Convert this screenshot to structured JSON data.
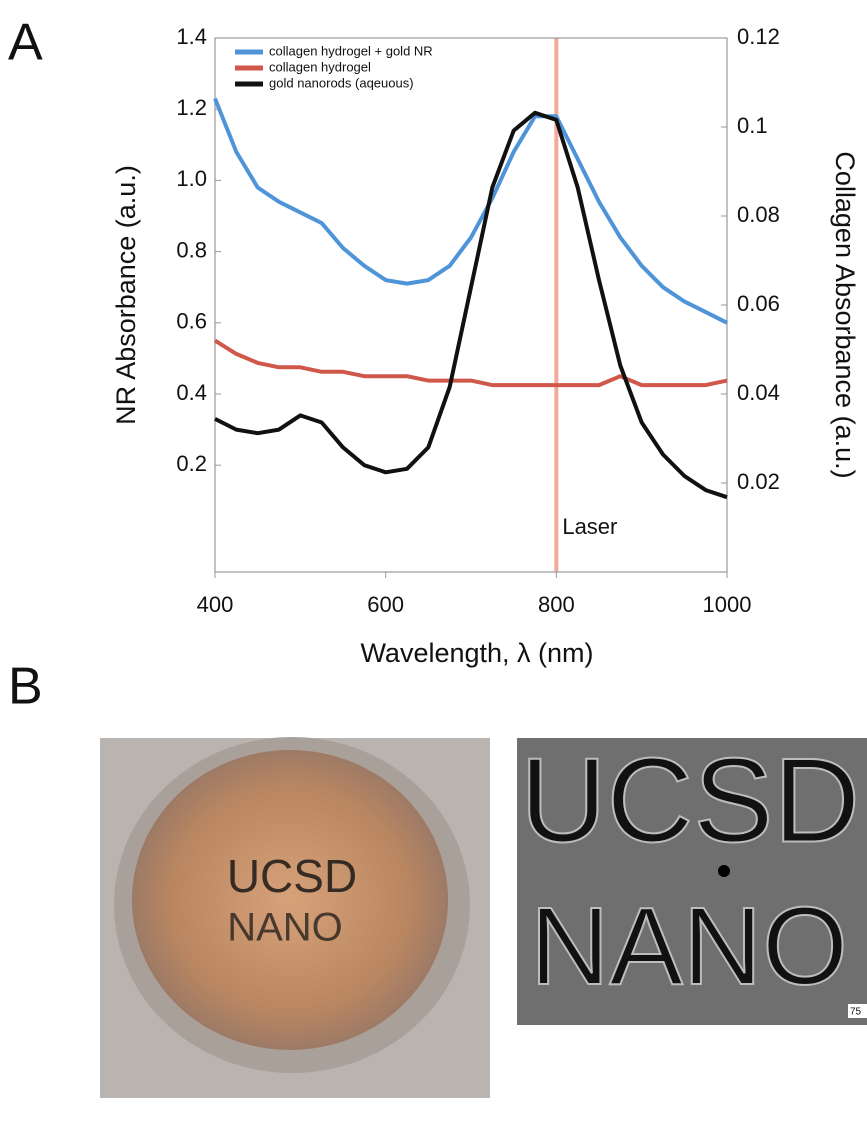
{
  "chart_data": {
    "type": "line",
    "xlabel": "Wavelength, λ (nm)",
    "ylabel": "NR Absorbance (a.u.)",
    "y2label": "Collagen Absorbance (a.u.)",
    "x": [
      400,
      425,
      450,
      475,
      500,
      525,
      550,
      575,
      600,
      625,
      650,
      675,
      700,
      725,
      750,
      775,
      800,
      825,
      850,
      875,
      900,
      925,
      950,
      975,
      1000
    ],
    "series": [
      {
        "name": "collagen hydrogel + gold NR",
        "color": "#4f94d9",
        "values": [
          1.23,
          1.08,
          0.98,
          0.94,
          0.91,
          0.88,
          0.81,
          0.76,
          0.72,
          0.71,
          0.72,
          0.76,
          0.84,
          0.95,
          1.08,
          1.18,
          1.18,
          1.06,
          0.94,
          0.84,
          0.76,
          0.7,
          0.66,
          0.63,
          0.6
        ]
      },
      {
        "name": "collagen hydrogel",
        "color": "#d0584b",
        "axis": "y2",
        "values": [
          0.052,
          0.049,
          0.047,
          0.046,
          0.046,
          0.045,
          0.045,
          0.044,
          0.044,
          0.044,
          0.043,
          0.043,
          0.043,
          0.042,
          0.042,
          0.042,
          0.042,
          0.042,
          0.042,
          0.044,
          0.042,
          0.042,
          0.042,
          0.042,
          0.043
        ]
      },
      {
        "name": "gold nanorods (aqeuous)",
        "color": "#111111",
        "values": [
          0.33,
          0.3,
          0.29,
          0.3,
          0.34,
          0.32,
          0.25,
          0.2,
          0.18,
          0.19,
          0.25,
          0.42,
          0.7,
          0.98,
          1.14,
          1.19,
          1.17,
          0.98,
          0.72,
          0.48,
          0.32,
          0.23,
          0.17,
          0.13,
          0.11
        ]
      }
    ],
    "xlim": [
      400,
      1000
    ],
    "xticks": [
      400,
      600,
      800,
      1000
    ],
    "ylim": [
      -0.1,
      1.4
    ],
    "yticks": [
      0.2,
      0.4,
      0.6,
      0.8,
      {
        "value": 1,
        "label": "1.0"
      },
      1.2,
      1.4
    ],
    "y2lim": [
      0,
      0.12
    ],
    "y2ticks": [
      0.02,
      0.04,
      0.06,
      0.08,
      0.1,
      0.12
    ],
    "vline": {
      "x": 800,
      "label": "Laser",
      "color": "#f4a99a"
    },
    "legend": "upper-left"
  },
  "panels": {
    "a_label": "A",
    "b_label": "B",
    "photo_text": [
      "UCSD",
      "NANO"
    ],
    "micrograph_text": [
      "UCSD",
      "NANO"
    ],
    "scale_label": "75"
  }
}
